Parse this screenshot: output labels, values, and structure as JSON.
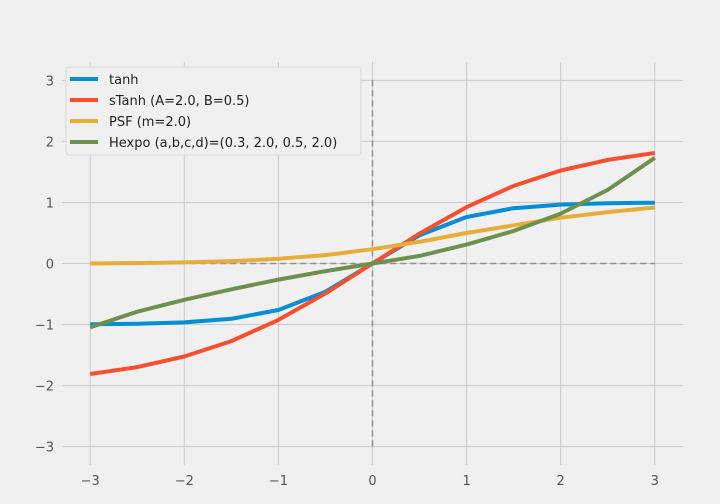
{
  "chart_data": {
    "type": "line",
    "title": "",
    "xlabel": "",
    "ylabel": "",
    "xlim": [
      -3.3,
      3.3
    ],
    "ylim": [
      -3.3,
      3.3
    ],
    "xticks": [
      -3,
      -2,
      -1,
      0,
      1,
      2,
      3
    ],
    "yticks": [
      -3,
      -2,
      -1,
      0,
      1,
      2,
      3
    ],
    "xtick_labels": [
      "−3",
      "−2",
      "−1",
      "0",
      "1",
      "2",
      "3"
    ],
    "ytick_labels": [
      "−3",
      "−2",
      "−1",
      "0",
      "1",
      "2",
      "3"
    ],
    "grid": true,
    "legend_position": "upper-left",
    "reference_lines": {
      "horizontal_y": 0,
      "vertical_x": 0,
      "style": "dashed",
      "color": "#8f8f8f"
    },
    "x": [
      -3.0,
      -2.5,
      -2.0,
      -1.5,
      -1.0,
      -0.5,
      0.0,
      0.5,
      1.0,
      1.5,
      2.0,
      2.5,
      3.0
    ],
    "series": [
      {
        "name": "tanh",
        "color": "#008fd5",
        "values": [
          -0.995,
          -0.987,
          -0.964,
          -0.905,
          -0.762,
          -0.462,
          0.0,
          0.462,
          0.762,
          0.905,
          0.964,
          0.987,
          0.995
        ]
      },
      {
        "name": "sTanh (A=2.0, B=0.5)",
        "color": "#fc4f30",
        "values": [
          -1.81,
          -1.697,
          -1.523,
          -1.271,
          -0.924,
          -0.49,
          0.0,
          0.49,
          0.924,
          1.271,
          1.523,
          1.697,
          1.81
        ]
      },
      {
        "name": "PSF (m=2.0)",
        "color": "#e5ae38",
        "values": [
          0.0,
          0.006,
          0.018,
          0.04,
          0.077,
          0.138,
          0.235,
          0.355,
          0.5,
          0.626,
          0.75,
          0.842,
          0.917
        ]
      },
      {
        "name": "Hexpo (a,b,c,d)=(0.3, 2.0, 0.5, 2.0)",
        "color": "#6d904f",
        "values": [
          -1.045,
          -0.79,
          -0.595,
          -0.422,
          -0.264,
          -0.125,
          0.0,
          0.125,
          0.31,
          0.533,
          0.818,
          1.205,
          1.73
        ]
      }
    ]
  }
}
